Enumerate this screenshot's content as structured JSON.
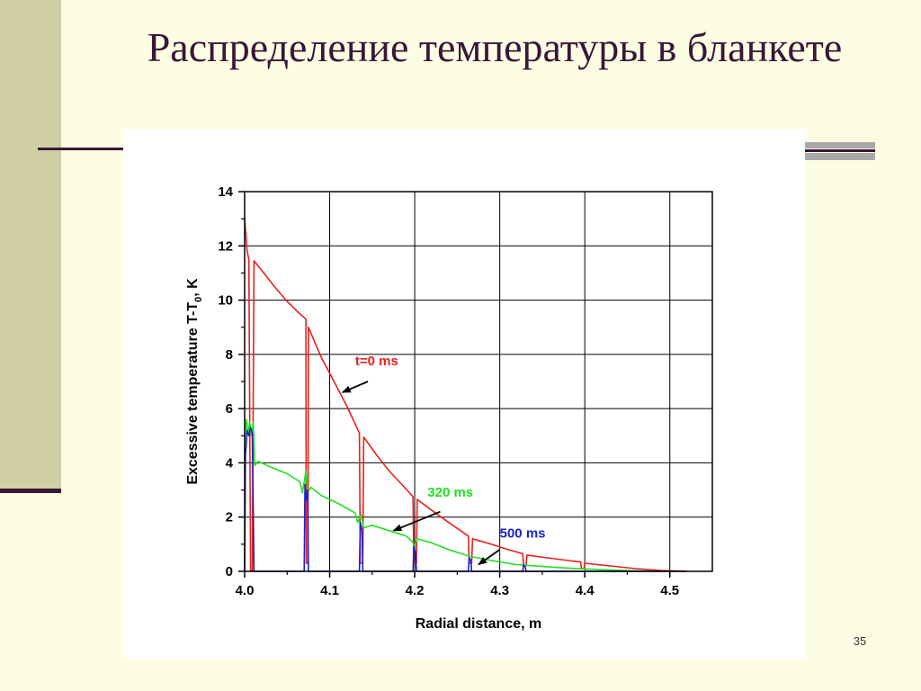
{
  "slide": {
    "title": "Распределение температуры в бланкете",
    "number": "35"
  },
  "colors": {
    "title": "#3a1638",
    "t0": "#e8201e",
    "t320": "#22e022",
    "t500": "#1a22c8",
    "grid": "#000000"
  },
  "chart_data": {
    "type": "line",
    "xlabel": "Radial distance, m",
    "ylabel": "Excessive temperature T-T0, K",
    "ylabel_parts": {
      "main": "Excessive temperature T-T",
      "sub": "0",
      "tail": ", K"
    },
    "xlim": [
      4.0,
      4.55
    ],
    "ylim": [
      0,
      14
    ],
    "x_ticks": [
      4.0,
      4.1,
      4.2,
      4.3,
      4.4,
      4.5
    ],
    "x_tick_labels": [
      "4.0",
      "4.1",
      "4.2",
      "4.3",
      "4.4",
      "4.5"
    ],
    "y_ticks": [
      0,
      2,
      4,
      6,
      8,
      10,
      12,
      14
    ],
    "y_tick_labels": [
      "0",
      "2",
      "4",
      "6",
      "8",
      "10",
      "12",
      "14"
    ],
    "grid": true,
    "series": [
      {
        "name": "t=0 ms",
        "color": "#e8201e",
        "points": [
          [
            4.0,
            13.0
          ],
          [
            4.003,
            11.8
          ],
          [
            4.005,
            11.5
          ],
          [
            4.007,
            0
          ],
          [
            4.009,
            0
          ],
          [
            4.011,
            11.45
          ],
          [
            4.02,
            11.1
          ],
          [
            4.035,
            10.5
          ],
          [
            4.05,
            9.95
          ],
          [
            4.063,
            9.55
          ],
          [
            4.072,
            9.3
          ],
          [
            4.0725,
            0.3
          ],
          [
            4.0745,
            0.3
          ],
          [
            4.075,
            9.0
          ],
          [
            4.09,
            7.9
          ],
          [
            4.105,
            7.0
          ],
          [
            4.12,
            6.1
          ],
          [
            4.135,
            5.1
          ],
          [
            4.136,
            0.3
          ],
          [
            4.139,
            0.3
          ],
          [
            4.14,
            4.95
          ],
          [
            4.155,
            4.3
          ],
          [
            4.17,
            3.7
          ],
          [
            4.185,
            3.2
          ],
          [
            4.198,
            2.75
          ],
          [
            4.199,
            0.3
          ],
          [
            4.202,
            0.3
          ],
          [
            4.203,
            2.65
          ],
          [
            4.22,
            2.25
          ],
          [
            4.24,
            1.8
          ],
          [
            4.263,
            1.3
          ],
          [
            4.264,
            0.3
          ],
          [
            4.267,
            0.3
          ],
          [
            4.268,
            1.2
          ],
          [
            4.29,
            1.0
          ],
          [
            4.31,
            0.8
          ],
          [
            4.327,
            0.65
          ],
          [
            4.328,
            0.2
          ],
          [
            4.331,
            0.2
          ],
          [
            4.332,
            0.6
          ],
          [
            4.36,
            0.48
          ],
          [
            4.39,
            0.36
          ],
          [
            4.395,
            0.35
          ],
          [
            4.396,
            0.1
          ],
          [
            4.399,
            0.1
          ],
          [
            4.4,
            0.3
          ],
          [
            4.43,
            0.2
          ],
          [
            4.46,
            0.1
          ],
          [
            4.49,
            0.03
          ],
          [
            4.52,
            0.0
          ]
        ]
      },
      {
        "name": "320 ms",
        "color": "#22e022",
        "points": [
          [
            4.0,
            4.8
          ],
          [
            4.002,
            5.6
          ],
          [
            4.004,
            5.1
          ],
          [
            4.006,
            5.5
          ],
          [
            4.008,
            5.0
          ],
          [
            4.01,
            5.5
          ],
          [
            4.012,
            3.9
          ],
          [
            4.016,
            4.05
          ],
          [
            4.03,
            3.85
          ],
          [
            4.05,
            3.6
          ],
          [
            4.065,
            3.3
          ],
          [
            4.068,
            2.9
          ],
          [
            4.072,
            3.7
          ],
          [
            4.074,
            2.9
          ],
          [
            4.078,
            3.1
          ],
          [
            4.09,
            2.8
          ],
          [
            4.11,
            2.5
          ],
          [
            4.13,
            2.15
          ],
          [
            4.133,
            1.8
          ],
          [
            4.137,
            2.1
          ],
          [
            4.14,
            1.6
          ],
          [
            4.15,
            1.7
          ],
          [
            4.17,
            1.5
          ],
          [
            4.19,
            1.3
          ],
          [
            4.197,
            1.1
          ],
          [
            4.2,
            0.95
          ],
          [
            4.203,
            1.2
          ],
          [
            4.22,
            1.05
          ],
          [
            4.24,
            0.8
          ],
          [
            4.265,
            0.55
          ],
          [
            4.29,
            0.4
          ],
          [
            4.32,
            0.25
          ],
          [
            4.35,
            0.18
          ],
          [
            4.38,
            0.12
          ],
          [
            4.42,
            0.06
          ],
          [
            4.46,
            0.02
          ],
          [
            4.5,
            0.0
          ]
        ]
      },
      {
        "name": "500 ms",
        "color": "#1a22c8",
        "points": [
          [
            4.0,
            0.0
          ],
          [
            4.001,
            4.3
          ],
          [
            4.003,
            5.2
          ],
          [
            4.005,
            5.0
          ],
          [
            4.007,
            5.3
          ],
          [
            4.009,
            5.1
          ],
          [
            4.011,
            0.0
          ],
          [
            4.07,
            0.0
          ],
          [
            4.071,
            3.2
          ],
          [
            4.072,
            2.6
          ],
          [
            4.074,
            3.0
          ],
          [
            4.075,
            0.0
          ],
          [
            4.135,
            0.0
          ],
          [
            4.136,
            1.8
          ],
          [
            4.138,
            1.5
          ],
          [
            4.139,
            0.0
          ],
          [
            4.198,
            0.0
          ],
          [
            4.199,
            0.9
          ],
          [
            4.201,
            0.7
          ],
          [
            4.202,
            0.0
          ],
          [
            4.263,
            0.0
          ],
          [
            4.264,
            0.5
          ],
          [
            4.266,
            0.4
          ],
          [
            4.267,
            0.0
          ],
          [
            4.327,
            0.0
          ],
          [
            4.328,
            0.25
          ],
          [
            4.33,
            0.15
          ],
          [
            4.331,
            0.0
          ],
          [
            4.52,
            0.0
          ]
        ]
      }
    ],
    "annotations": [
      {
        "text": "t=0 ms",
        "color": "#e8201e",
        "x": 4.13,
        "y": 7.6,
        "arrow_from": [
          4.145,
          7.0
        ],
        "arrow_to": [
          4.115,
          6.6
        ]
      },
      {
        "text": "320 ms",
        "color": "#22e022",
        "x": 4.215,
        "y": 2.75,
        "arrow_from": [
          4.23,
          2.2
        ],
        "arrow_to": [
          4.175,
          1.5
        ]
      },
      {
        "text": "500 ms",
        "color": "#1a22c8",
        "x": 4.3,
        "y": 1.25,
        "arrow_from": [
          4.3,
          0.8
        ],
        "arrow_to": [
          4.275,
          0.25
        ]
      }
    ]
  }
}
